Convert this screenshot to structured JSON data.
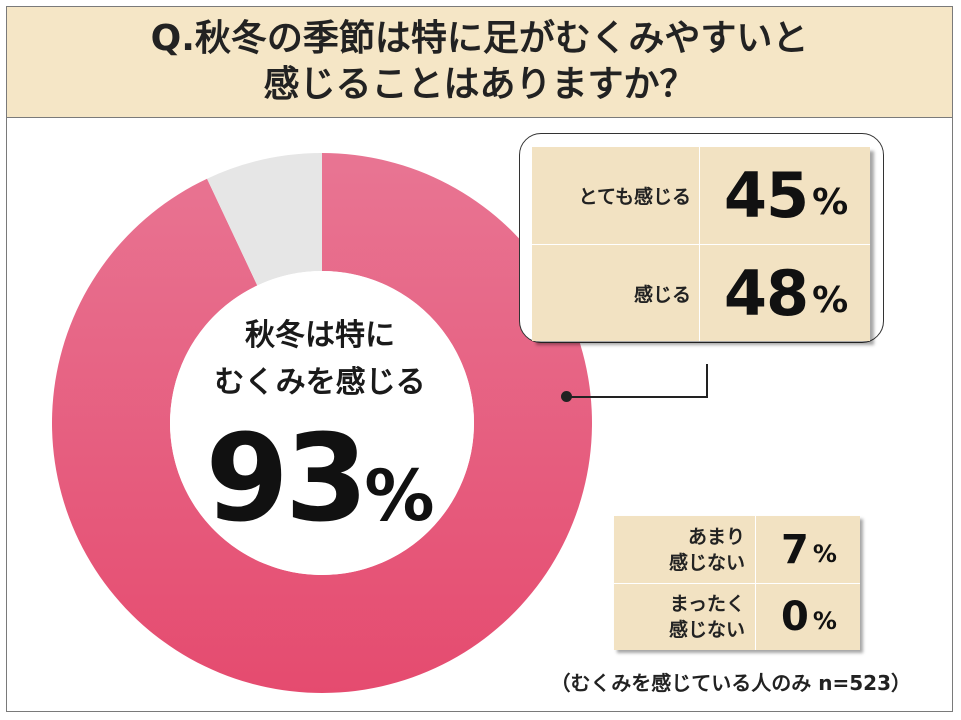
{
  "header": {
    "line1": "Q.秋冬の季節は特に足がむくみやすいと",
    "line2": "感じることはありますか？"
  },
  "center": {
    "line1": "秋冬は特に",
    "line2": "むくみを感じる",
    "value": "93",
    "unit": "%"
  },
  "colors": {
    "donut_top": "#e87593",
    "donut_bottom": "#e54b6f",
    "donut_rest": "#e6e6e6",
    "table_bg": "#f2e2c2",
    "header_bg": "#f5e6c6"
  },
  "chart_data": {
    "type": "pie",
    "categories": [
      "とても感じる＋感じる",
      "あまり感じない"
    ],
    "values": [
      93,
      7
    ]
  },
  "callout_rows": [
    {
      "label": "とても感じる",
      "value": "45",
      "unit": "%"
    },
    {
      "label": "感じる",
      "value": "48",
      "unit": "%"
    }
  ],
  "small_rows": [
    {
      "label_1": "あまり",
      "label_2": "感じない",
      "value": "7",
      "unit": "%"
    },
    {
      "label_1": "まったく",
      "label_2": "感じない",
      "value": "0",
      "unit": "%"
    }
  ],
  "note": "（むくみを感じている人のみ n=523）"
}
